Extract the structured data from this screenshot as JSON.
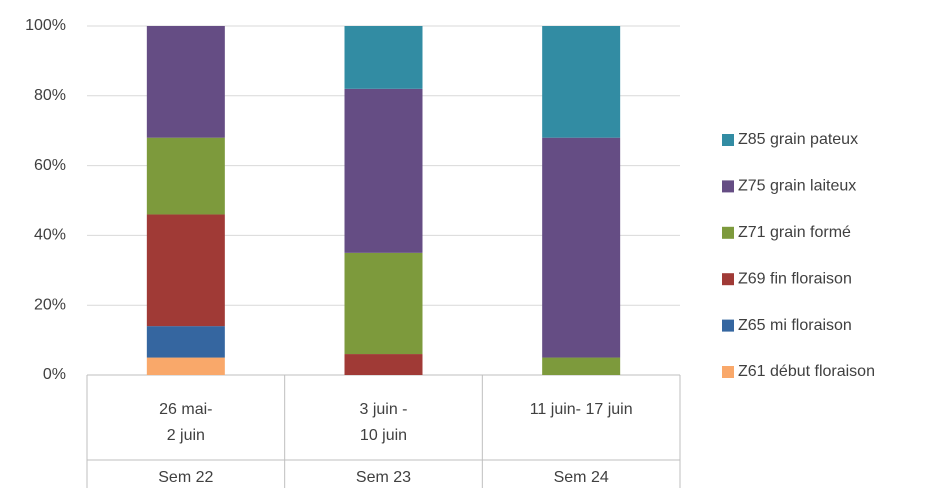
{
  "chart_data": {
    "type": "stacked_bar",
    "categories": [
      [
        "26 mai-",
        "2 juin"
      ],
      [
        "3 juin -",
        "10 juin"
      ],
      [
        "11 juin- 17 juin"
      ]
    ],
    "groups": [
      "Sem 22",
      "Sem 23",
      "Sem 24"
    ],
    "series": [
      {
        "name": "Z61 début floraison",
        "color": "#f9a86a",
        "values": [
          5,
          0,
          0
        ]
      },
      {
        "name": "Z65 mi floraison",
        "color": "#3566a0",
        "values": [
          9,
          0,
          0
        ]
      },
      {
        "name": "Z69 fin floraison",
        "color": "#a03a36",
        "values": [
          32,
          6,
          0
        ]
      },
      {
        "name": "Z71 grain formé",
        "color": "#7d9a3c",
        "values": [
          22,
          29,
          5
        ]
      },
      {
        "name": "Z75 grain laiteux",
        "color": "#654d84",
        "values": [
          32,
          47,
          63
        ]
      },
      {
        "name": "Z85 grain pateux",
        "color": "#328ca3",
        "values": [
          0,
          18,
          32
        ]
      }
    ],
    "ylim": [
      0,
      100
    ],
    "yticks": [
      {
        "value": 0,
        "label": "0%"
      },
      {
        "value": 20,
        "label": "20%"
      },
      {
        "value": 40,
        "label": "40%"
      },
      {
        "value": 60,
        "label": "60%"
      },
      {
        "value": 80,
        "label": "80%"
      },
      {
        "value": 100,
        "label": "100%"
      }
    ],
    "grid": true,
    "legend": "right"
  }
}
